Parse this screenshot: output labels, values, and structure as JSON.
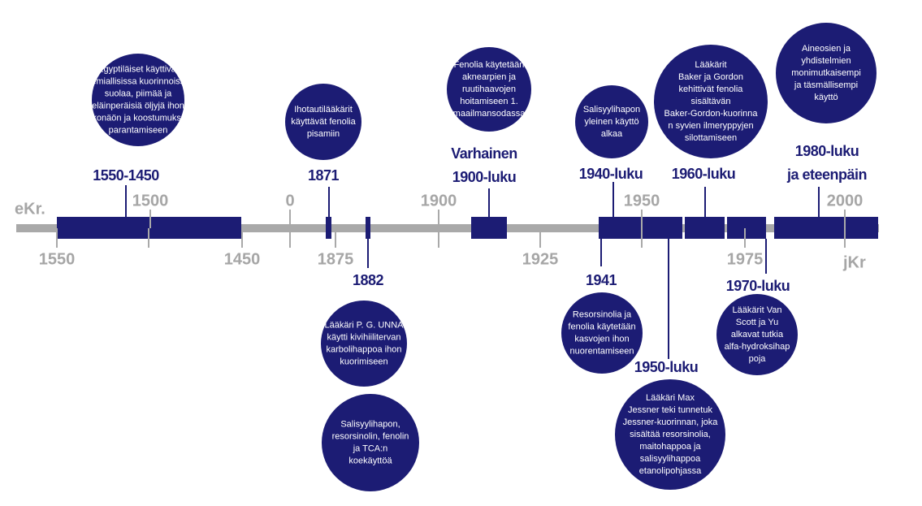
{
  "axis": {
    "era_before": "eKr.",
    "era_after": "jKr",
    "ticks_above": [
      "1500",
      "0",
      "1900",
      "1950",
      "2000"
    ],
    "ticks_below": [
      "1550",
      "1450",
      "1875",
      "1925",
      "1975"
    ]
  },
  "periods": [
    {
      "lines": [
        "1550-1450"
      ]
    },
    {
      "lines": [
        "1871"
      ]
    },
    {
      "lines": [
        "1882"
      ]
    },
    {
      "lines": [
        "Varhainen",
        "1900-luku"
      ]
    },
    {
      "lines": [
        "1940-luku"
      ]
    },
    {
      "lines": [
        "1941"
      ]
    },
    {
      "lines": [
        "1950-luku"
      ]
    },
    {
      "lines": [
        "1960-luku"
      ]
    },
    {
      "lines": [
        "1970-luku"
      ]
    },
    {
      "lines": [
        "1980-luku",
        "ja eteenpäin"
      ]
    }
  ],
  "notes": [
    {
      "lines": [
        "Egyptiläiset käyttivät",
        "kemiallisissa kuorinnoissa",
        "suolaa, piimää ja",
        "eläinperäisiä öljyjä ihon",
        "ulkonäön ja koostumuksen",
        "parantamiseen"
      ]
    },
    {
      "lines": [
        "Ihotautilääkärit",
        "käyttävät fenolia",
        "pisamiin"
      ]
    },
    {
      "lines": [
        "Fenolia käytetään",
        "aknearpien ja",
        "ruutihaavojen",
        "hoitamiseen 1.",
        "maailmansodassa"
      ]
    },
    {
      "lines": [
        "Salisyylihapon",
        "yleinen käyttö",
        "alkaa"
      ]
    },
    {
      "lines": [
        "Lääkärit",
        "Baker ja Gordon",
        "kehittivät fenolia",
        "sisältävän",
        "Baker-Gordon-kuorinna",
        "n syvien ilmeryppyjen",
        "silottamiseen"
      ]
    },
    {
      "lines": [
        "Aineosien ja",
        "yhdistelmien",
        "monimutkaisempi",
        "ja täsmällisempi",
        "käyttö"
      ]
    },
    {
      "lines": [
        "Lääkäri P. G. UNNA",
        "käytti kivihiilitervan",
        "karbolihappoa ihon",
        "kuorimiseen"
      ]
    },
    {
      "lines": [
        "Salisyylihapon,",
        "resorsinolin, fenolin",
        "ja TCA:n",
        "koekäyttöä"
      ]
    },
    {
      "lines": [
        "Resorsinolia ja",
        "fenolia käytetään",
        "kasvojen ihon",
        "nuorentamiseen"
      ]
    },
    {
      "lines": [
        "Lääkäri Max",
        "Jessner teki tunnetuk",
        "Jessner-kuorinnan, joka",
        "sisältää resorsinolia,",
        "maitohappoa ja",
        "salisyylihappoa",
        "etanolipohjassa"
      ]
    },
    {
      "lines": [
        "Lääkärit Van",
        "Scott ja Yu",
        "alkavat tutkia",
        "alfa-hydroksihap",
        "poja"
      ]
    }
  ]
}
